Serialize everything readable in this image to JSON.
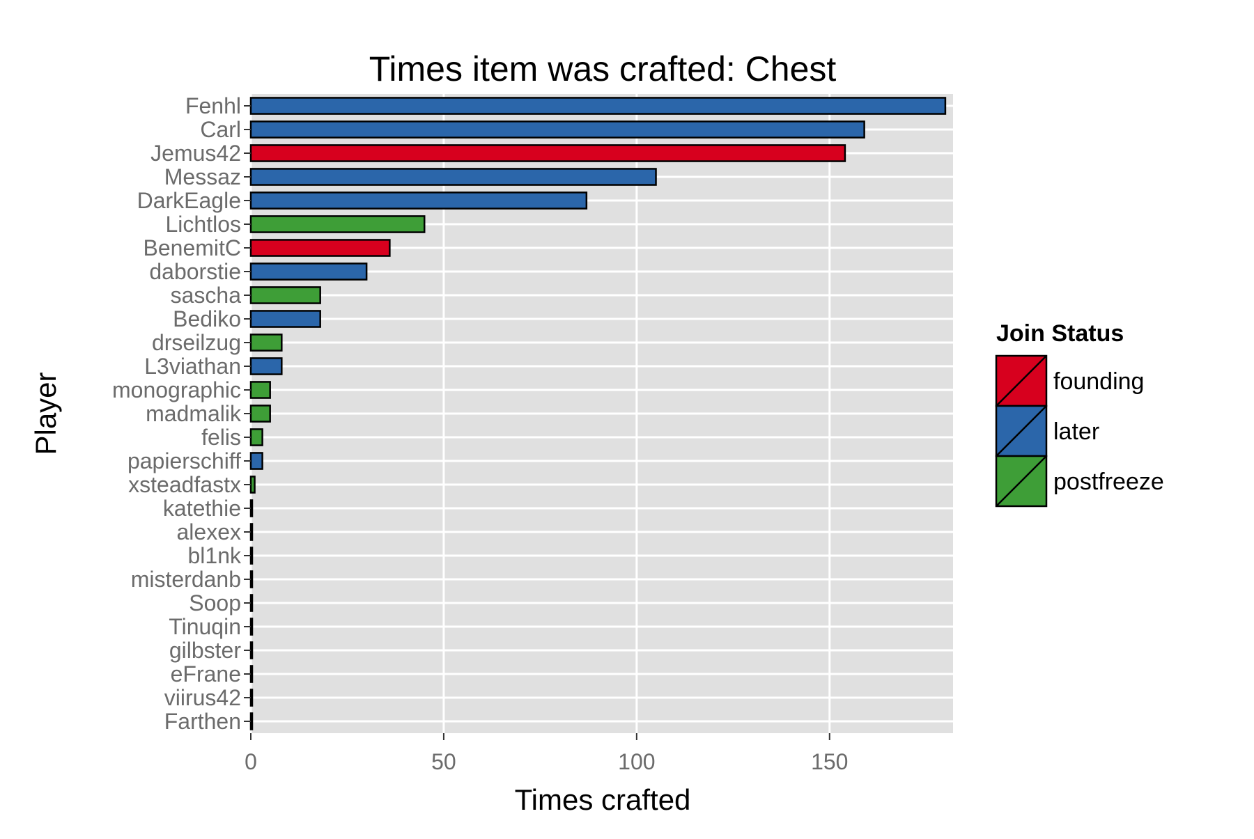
{
  "chart_data": {
    "type": "bar",
    "orientation": "horizontal",
    "title": "Times item was crafted: Chest",
    "xlabel": "Times crafted",
    "ylabel": "Player",
    "xlim": [
      0,
      182
    ],
    "x_ticks": [
      0,
      50,
      100,
      150
    ],
    "grid": true,
    "legend_position": "right",
    "legend": {
      "title": "Join Status",
      "items": [
        {
          "name": "founding",
          "color": "#d7001e"
        },
        {
          "name": "later",
          "color": "#2b66aa"
        },
        {
          "name": "postfreeze",
          "color": "#3e9e37"
        }
      ]
    },
    "categories": [
      "Fenhl",
      "Carl",
      "Jemus42",
      "Messaz",
      "DarkEagle",
      "Lichtlos",
      "BenemitC",
      "daborstie",
      "sascha",
      "Bediko",
      "drseilzug",
      "L3viathan",
      "monographic",
      "madmalik",
      "felis",
      "papierschiff",
      "xsteadfastx",
      "katethie",
      "alexex",
      "bl1nk",
      "misterdanb",
      "Soop",
      "Tinuqin",
      "gilbster",
      "eFrane",
      "viirus42",
      "Farthen"
    ],
    "values": [
      180,
      159,
      154,
      105,
      87,
      45,
      36,
      30,
      18,
      18,
      8,
      8,
      5,
      5,
      3,
      3,
      1,
      0,
      0,
      0,
      0,
      0,
      0,
      0,
      0,
      0,
      0
    ],
    "groups": [
      "later",
      "later",
      "founding",
      "later",
      "later",
      "postfreeze",
      "founding",
      "later",
      "postfreeze",
      "later",
      "postfreeze",
      "later",
      "postfreeze",
      "postfreeze",
      "postfreeze",
      "later",
      "postfreeze",
      "founding",
      "later",
      "later",
      "later",
      "later",
      "later",
      "later",
      "later",
      "later",
      "later"
    ]
  }
}
